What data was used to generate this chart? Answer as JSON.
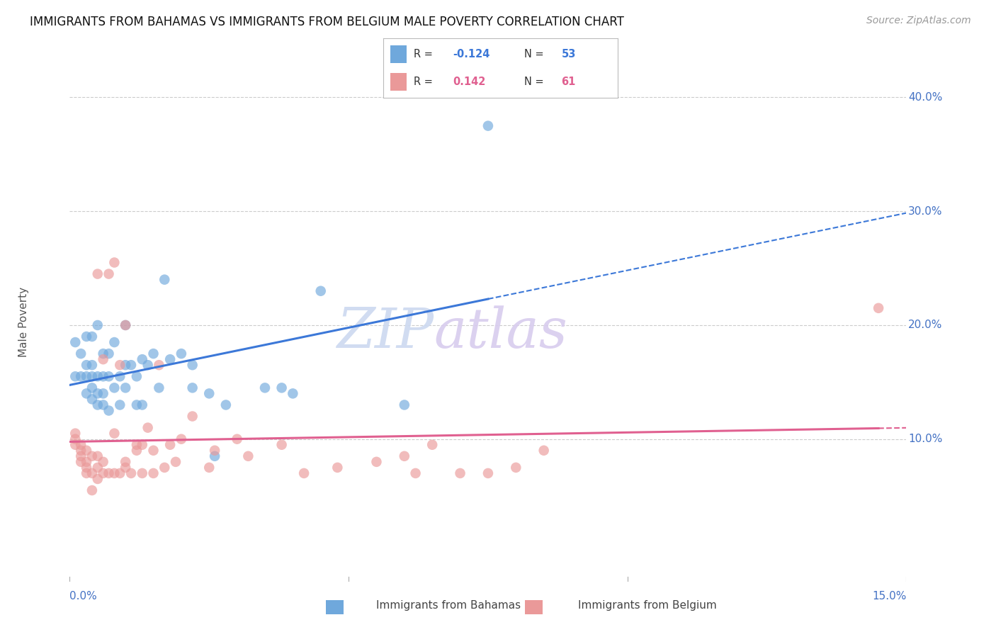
{
  "title": "IMMIGRANTS FROM BAHAMAS VS IMMIGRANTS FROM BELGIUM MALE POVERTY CORRELATION CHART",
  "source": "Source: ZipAtlas.com",
  "ylabel": "Male Poverty",
  "xmin": 0.0,
  "xmax": 0.15,
  "ymin": -0.025,
  "ymax": 0.43,
  "legend_r_bahamas": "-0.124",
  "legend_n_bahamas": "53",
  "legend_r_belgium": "0.142",
  "legend_n_belgium": "61",
  "color_bahamas": "#6fa8dc",
  "color_belgium": "#ea9999",
  "trend_color_bahamas": "#3c78d8",
  "trend_color_belgium": "#e06090",
  "bahamas_x": [
    0.001,
    0.001,
    0.002,
    0.002,
    0.003,
    0.003,
    0.003,
    0.003,
    0.004,
    0.004,
    0.004,
    0.004,
    0.004,
    0.005,
    0.005,
    0.005,
    0.005,
    0.006,
    0.006,
    0.006,
    0.006,
    0.007,
    0.007,
    0.007,
    0.008,
    0.008,
    0.009,
    0.009,
    0.01,
    0.01,
    0.01,
    0.011,
    0.012,
    0.012,
    0.013,
    0.013,
    0.014,
    0.015,
    0.016,
    0.017,
    0.018,
    0.02,
    0.022,
    0.022,
    0.025,
    0.026,
    0.028,
    0.035,
    0.038,
    0.04,
    0.045,
    0.06,
    0.075
  ],
  "bahamas_y": [
    0.155,
    0.185,
    0.155,
    0.175,
    0.14,
    0.155,
    0.165,
    0.19,
    0.135,
    0.145,
    0.155,
    0.165,
    0.19,
    0.13,
    0.14,
    0.155,
    0.2,
    0.13,
    0.14,
    0.155,
    0.175,
    0.125,
    0.155,
    0.175,
    0.145,
    0.185,
    0.13,
    0.155,
    0.145,
    0.165,
    0.2,
    0.165,
    0.13,
    0.155,
    0.17,
    0.13,
    0.165,
    0.175,
    0.145,
    0.24,
    0.17,
    0.175,
    0.145,
    0.165,
    0.14,
    0.085,
    0.13,
    0.145,
    0.145,
    0.14,
    0.23,
    0.13,
    0.375
  ],
  "belgium_x": [
    0.001,
    0.001,
    0.001,
    0.002,
    0.002,
    0.002,
    0.002,
    0.003,
    0.003,
    0.003,
    0.003,
    0.004,
    0.004,
    0.004,
    0.005,
    0.005,
    0.005,
    0.005,
    0.006,
    0.006,
    0.006,
    0.007,
    0.007,
    0.008,
    0.008,
    0.008,
    0.009,
    0.009,
    0.01,
    0.01,
    0.01,
    0.011,
    0.012,
    0.012,
    0.013,
    0.013,
    0.014,
    0.015,
    0.015,
    0.016,
    0.017,
    0.018,
    0.019,
    0.02,
    0.022,
    0.025,
    0.026,
    0.03,
    0.032,
    0.038,
    0.042,
    0.048,
    0.055,
    0.06,
    0.062,
    0.065,
    0.07,
    0.075,
    0.08,
    0.085,
    0.145
  ],
  "belgium_y": [
    0.1,
    0.105,
    0.095,
    0.08,
    0.085,
    0.09,
    0.095,
    0.07,
    0.075,
    0.08,
    0.09,
    0.055,
    0.07,
    0.085,
    0.065,
    0.075,
    0.085,
    0.245,
    0.07,
    0.08,
    0.17,
    0.07,
    0.245,
    0.07,
    0.105,
    0.255,
    0.07,
    0.165,
    0.075,
    0.08,
    0.2,
    0.07,
    0.09,
    0.095,
    0.07,
    0.095,
    0.11,
    0.07,
    0.09,
    0.165,
    0.075,
    0.095,
    0.08,
    0.1,
    0.12,
    0.075,
    0.09,
    0.1,
    0.085,
    0.095,
    0.07,
    0.075,
    0.08,
    0.085,
    0.07,
    0.095,
    0.07,
    0.07,
    0.075,
    0.09,
    0.215
  ]
}
